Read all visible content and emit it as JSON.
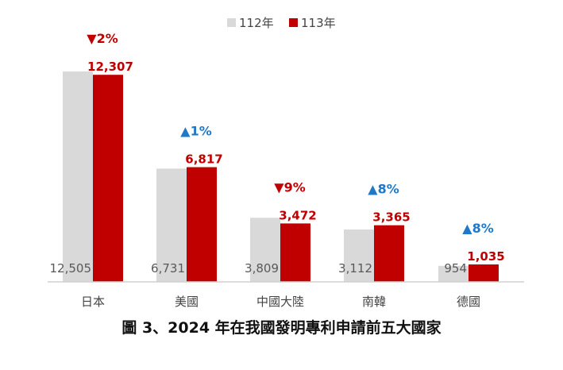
{
  "caption": "圖 3、2024 年在我國發明專利申請前五大國家",
  "colors": {
    "prev": "#d9d9d9",
    "curr": "#c00000",
    "up": "#1f78c8",
    "down": "#c00000",
    "prevLabel": "#595959"
  },
  "chart_data": {
    "type": "bar",
    "categories": [
      "日本",
      "美國",
      "中國大陸",
      "南韓",
      "德國"
    ],
    "series": [
      {
        "name": "112年",
        "values": [
          12505,
          6731,
          3809,
          3112,
          954
        ]
      },
      {
        "name": "113年",
        "values": [
          12307,
          6817,
          3472,
          3365,
          1035
        ]
      }
    ],
    "value_labels": {
      "112年": [
        "12,505",
        "6,731",
        "3,809",
        "3,112",
        "954"
      ],
      "113年": [
        "12,307",
        "6,817",
        "3,472",
        "3,365",
        "1,035"
      ]
    },
    "changes": [
      {
        "dir": "down",
        "symbol": "▼",
        "text": "2%"
      },
      {
        "dir": "up",
        "symbol": "▲",
        "text": "1%"
      },
      {
        "dir": "down",
        "symbol": "▼",
        "text": "9%"
      },
      {
        "dir": "up",
        "symbol": "▲",
        "text": "8%"
      },
      {
        "dir": "up",
        "symbol": "▲",
        "text": "8%"
      }
    ],
    "ylim": [
      0,
      12505
    ],
    "legend": "top-center",
    "grid": false
  }
}
